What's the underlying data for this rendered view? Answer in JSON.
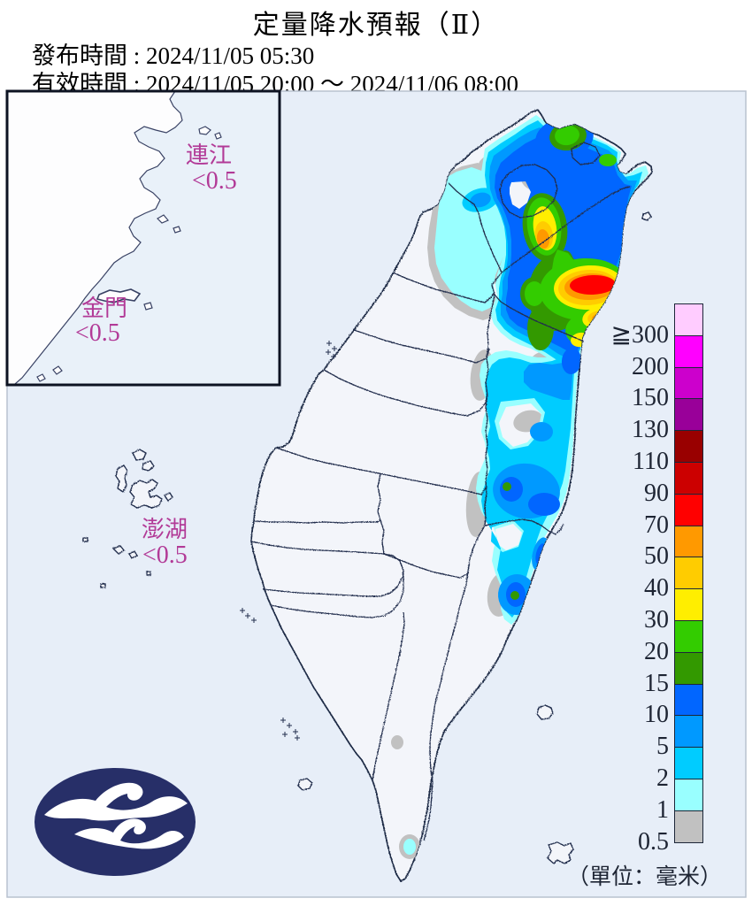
{
  "header": {
    "title": "定量降水預報（Ⅱ）",
    "issue_line": "發布時間 : 2024/11/05 05:30",
    "valid_line": "有效時間 : 2024/11/05 20:00 ～ 2024/11/06 08:00"
  },
  "map": {
    "region_labels": [
      {
        "id": "lianjiang",
        "name": "連江",
        "value": "<0.5"
      },
      {
        "id": "kinmen",
        "name": "金門",
        "value": "<0.5"
      },
      {
        "id": "penghu",
        "name": "澎湖",
        "value": "<0.5"
      }
    ],
    "label_color": "#b23a97",
    "sea_color": "#e7eef8",
    "land_color": "#f3f5fa",
    "border_color": "#232f4e"
  },
  "legend": {
    "unit_label": "（單位：毫米）",
    "cells": [
      {
        "label": "≧300",
        "color": "#ffccff"
      },
      {
        "label": "200",
        "color": "#ff00ff"
      },
      {
        "label": "150",
        "color": "#cc00cc"
      },
      {
        "label": "130",
        "color": "#990099"
      },
      {
        "label": "110",
        "color": "#990000"
      },
      {
        "label": "90",
        "color": "#cc0000"
      },
      {
        "label": "70",
        "color": "#ff0000"
      },
      {
        "label": "50",
        "color": "#ff9900"
      },
      {
        "label": "40",
        "color": "#ffcc00"
      },
      {
        "label": "30",
        "color": "#ffee00"
      },
      {
        "label": "20",
        "color": "#33cc00"
      },
      {
        "label": "15",
        "color": "#339900"
      },
      {
        "label": "10",
        "color": "#0166ff"
      },
      {
        "label": "5",
        "color": "#0099ff"
      },
      {
        "label": "2",
        "color": "#00ccff"
      },
      {
        "label": "1",
        "color": "#99ffff"
      },
      {
        "label": "0.5",
        "color": "#c1c1c1"
      }
    ]
  }
}
